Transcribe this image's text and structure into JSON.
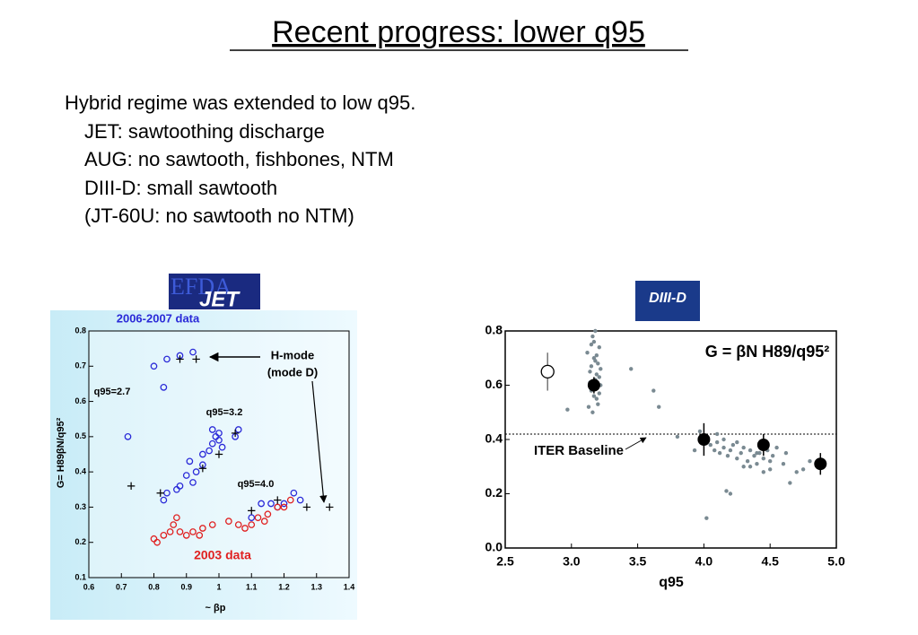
{
  "title": "Recent progress: lower q95",
  "bullets": [
    "Hybrid regime was extended to low q95.",
    "JET: sawtoothing discharge",
    "AUG: no sawtooth, fishbones, NTM",
    "DIII-D: small sawtooth",
    "(JT-60U: no sawtooth no NTM)"
  ],
  "logos": [
    "EFDA",
    "JET",
    "DIII-D"
  ],
  "chart_data": [
    {
      "type": "scatter",
      "xlabel": "~ βp",
      "ylabel": "G= H89βN/q95²",
      "xlim": [
        0.6,
        1.4
      ],
      "xticks": [
        0.6,
        0.7,
        0.8,
        0.9,
        1,
        1.1,
        1.2,
        1.3,
        1.4
      ],
      "ylim": [
        0.1,
        0.8
      ],
      "yticks": [
        0.1,
        0.2,
        0.3,
        0.4,
        0.5,
        0.6,
        0.7,
        0.8
      ],
      "annotations": [
        "H-mode",
        "(mode D)",
        "q95=2.7",
        "q95=3.2",
        "q95=4.0"
      ],
      "series": [
        {
          "name": "2006-2007 data",
          "color": "#2a2ad8",
          "marker": "circle-open",
          "x": [
            0.72,
            0.8,
            0.83,
            0.84,
            0.88,
            0.92,
            0.83,
            0.84,
            0.87,
            0.88,
            0.9,
            0.91,
            0.92,
            0.93,
            0.95,
            0.95,
            0.97,
            0.98,
            0.99,
            1.0,
            1.01,
            0.98,
            1.0,
            1.05,
            1.06,
            1.1,
            1.13,
            1.16,
            1.18,
            1.2,
            1.23,
            1.25
          ],
          "values": [
            0.5,
            0.7,
            0.64,
            0.72,
            0.73,
            0.74,
            0.32,
            0.34,
            0.35,
            0.36,
            0.39,
            0.43,
            0.37,
            0.4,
            0.42,
            0.45,
            0.46,
            0.48,
            0.5,
            0.49,
            0.47,
            0.52,
            0.51,
            0.5,
            0.52,
            0.27,
            0.31,
            0.31,
            0.3,
            0.31,
            0.34,
            0.32
          ]
        },
        {
          "name": "2003 data",
          "color": "#e02020",
          "marker": "circle-open",
          "x": [
            0.8,
            0.81,
            0.83,
            0.85,
            0.86,
            0.87,
            0.88,
            0.9,
            0.92,
            0.94,
            0.95,
            0.98,
            1.03,
            1.06,
            1.08,
            1.1,
            1.12,
            1.14,
            1.15,
            1.18,
            1.2,
            1.22
          ],
          "values": [
            0.21,
            0.2,
            0.22,
            0.23,
            0.25,
            0.27,
            0.23,
            0.22,
            0.23,
            0.22,
            0.24,
            0.25,
            0.26,
            0.25,
            0.24,
            0.25,
            0.27,
            0.26,
            0.28,
            0.3,
            0.3,
            0.32
          ]
        },
        {
          "color": "#000000",
          "marker": "plus",
          "x": [
            0.73,
            0.82,
            0.88,
            0.93,
            0.95,
            1.0,
            1.05,
            1.1,
            1.18,
            1.27,
            1.34
          ],
          "values": [
            0.36,
            0.34,
            0.72,
            0.72,
            0.41,
            0.45,
            0.51,
            0.29,
            0.32,
            0.3,
            0.3
          ]
        }
      ]
    },
    {
      "type": "scatter",
      "xlabel": "q95",
      "annotations": [
        "G = βN H89/q95²",
        "ITER Baseline"
      ],
      "xlim": [
        2.5,
        5.0
      ],
      "xticks": [
        2.5,
        {
          "value": 3,
          "label": "3.0"
        },
        3.5,
        {
          "value": 4,
          "label": "4.0"
        },
        4.5,
        {
          "value": 5,
          "label": "5.0"
        }
      ],
      "ylim": [
        0.0,
        0.8
      ],
      "yticks": [
        {
          "value": 0,
          "label": "0.0"
        },
        0.2,
        0.4,
        0.6,
        0.8
      ],
      "reference_line": 0.42,
      "series": [
        {
          "color": "#7a8a92",
          "marker": "dot",
          "x": [
            3.12,
            3.14,
            3.15,
            3.16,
            3.17,
            3.18,
            3.19,
            3.2,
            3.21,
            3.22,
            3.13,
            3.15,
            3.17,
            3.19,
            3.21,
            3.16,
            3.18,
            3.2,
            3.14,
            3.22,
            3.17,
            3.19,
            3.15,
            3.21,
            3.18,
            2.97,
            3.45,
            3.62,
            3.66,
            3.8,
            3.93,
            3.97,
            4.05,
            4.08,
            4.1,
            4.12,
            4.15,
            4.18,
            4.2,
            4.22,
            4.25,
            4.28,
            4.3,
            4.33,
            4.35,
            4.38,
            4.4,
            4.42,
            4.45,
            4.48,
            4.5,
            4.52,
            4.55,
            4.15,
            4.25,
            4.35,
            4.45,
            4.1,
            4.3,
            4.2,
            4.4,
            4.5,
            4.6,
            4.62,
            4.65,
            4.7,
            4.75,
            4.8,
            4.17,
            4.02
          ],
          "values": [
            0.72,
            0.65,
            0.58,
            0.78,
            0.7,
            0.62,
            0.55,
            0.68,
            0.74,
            0.6,
            0.52,
            0.67,
            0.76,
            0.64,
            0.57,
            0.5,
            0.8,
            0.53,
            0.61,
            0.66,
            0.56,
            0.71,
            0.75,
            0.63,
            0.69,
            0.51,
            0.66,
            0.58,
            0.52,
            0.41,
            0.36,
            0.43,
            0.38,
            0.36,
            0.39,
            0.35,
            0.37,
            0.34,
            0.36,
            0.38,
            0.33,
            0.35,
            0.37,
            0.32,
            0.36,
            0.34,
            0.31,
            0.35,
            0.33,
            0.36,
            0.32,
            0.34,
            0.37,
            0.4,
            0.39,
            0.3,
            0.28,
            0.42,
            0.3,
            0.2,
            0.35,
            0.29,
            0.31,
            0.35,
            0.24,
            0.28,
            0.29,
            0.32,
            0.21,
            0.11
          ]
        },
        {
          "color": "#000000",
          "marker": "circle-filled",
          "x": [
            3.17,
            4.0,
            4.45,
            4.88
          ],
          "values": [
            0.6,
            0.4,
            0.38,
            0.31
          ],
          "errors": [
            0.03,
            0.06,
            0.04,
            0.04
          ]
        },
        {
          "color": "#000000",
          "marker": "circle-open",
          "x": [
            2.82
          ],
          "values": [
            0.65
          ],
          "errors": [
            0.07
          ]
        }
      ]
    }
  ]
}
